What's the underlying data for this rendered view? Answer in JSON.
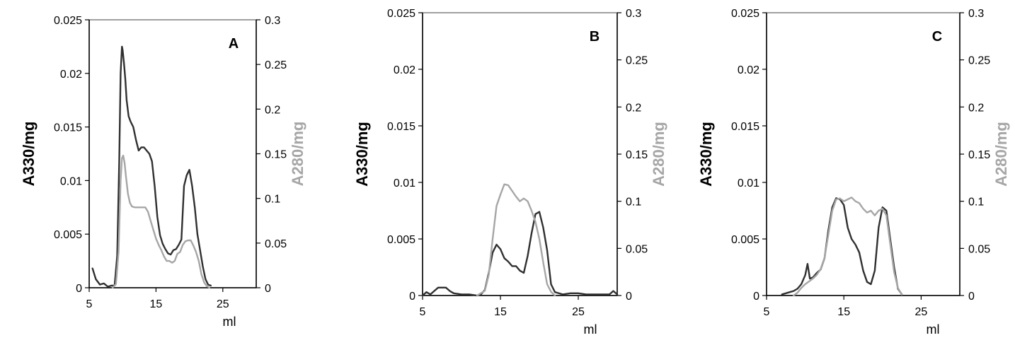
{
  "chart_data": [
    {
      "type": "line",
      "title": "A",
      "xlabel": "ml",
      "ylabel": "A330/mg",
      "y2label": "A280/mg",
      "xlim": [
        5,
        30
      ],
      "ylim": [
        0,
        0.025
      ],
      "y2lim": [
        0,
        0.3
      ],
      "xticks": [
        5,
        15,
        25
      ],
      "xtick_labels": [
        "5",
        "15",
        "25"
      ],
      "yticks": [
        0,
        0.005,
        0.01,
        0.015,
        0.02,
        0.025
      ],
      "ytick_labels": [
        "0",
        "0.005",
        "0.01",
        "0.015",
        "0.02",
        "0.025"
      ],
      "y2ticks": [
        0,
        0.05,
        0.1,
        0.15,
        0.2,
        0.25,
        0.3
      ],
      "y2tick_labels": [
        "0",
        "0.05",
        "0.1",
        "0.15",
        "0.2",
        "0.25",
        "0.3"
      ],
      "grid": false,
      "series": [
        {
          "axis": "left",
          "color": "#303030",
          "x": [
            5.5,
            6.0,
            6.6,
            7.2,
            7.8,
            8.3,
            8.8,
            9.2,
            9.5,
            9.7,
            9.9,
            10.0,
            10.2,
            10.4,
            10.6,
            10.9,
            11.2,
            11.6,
            12.0,
            12.4,
            12.8,
            13.2,
            13.6,
            14.0,
            14.4,
            14.8,
            15.2,
            15.6,
            16.0,
            16.4,
            16.8,
            17.2,
            17.6,
            18.0,
            18.4,
            18.8,
            19.2,
            19.6,
            20.0,
            20.4,
            20.8,
            21.2,
            21.6,
            22.0,
            22.4,
            22.8,
            23.2
          ],
          "values": [
            0.0018,
            0.0008,
            0.0003,
            0.0004,
            0.0001,
            0.0002,
            0.0002,
            0.003,
            0.012,
            0.02,
            0.0225,
            0.0222,
            0.021,
            0.0195,
            0.0175,
            0.016,
            0.0155,
            0.015,
            0.0138,
            0.0128,
            0.0131,
            0.0131,
            0.0128,
            0.0125,
            0.0118,
            0.0095,
            0.0066,
            0.0049,
            0.0041,
            0.0036,
            0.0032,
            0.0031,
            0.0035,
            0.0036,
            0.004,
            0.0045,
            0.0095,
            0.0105,
            0.011,
            0.0095,
            0.0075,
            0.005,
            0.0035,
            0.002,
            0.0008,
            0.0003,
            0.0002
          ]
        },
        {
          "axis": "right",
          "color": "#a6a6a6",
          "x": [
            8.5,
            9.0,
            9.4,
            9.7,
            9.9,
            10.1,
            10.3,
            10.5,
            10.8,
            11.1,
            11.4,
            11.8,
            12.2,
            12.6,
            13.0,
            13.4,
            13.8,
            14.2,
            14.6,
            15.0,
            15.4,
            15.8,
            16.2,
            16.6,
            17.0,
            17.4,
            17.8,
            18.2,
            18.6,
            19.0,
            19.4,
            19.8,
            20.2,
            20.6,
            21.0,
            21.4,
            21.8,
            22.2,
            22.6,
            23.0
          ],
          "values": [
            0.0,
            0.004,
            0.04,
            0.12,
            0.145,
            0.148,
            0.14,
            0.125,
            0.105,
            0.095,
            0.091,
            0.09,
            0.09,
            0.09,
            0.09,
            0.09,
            0.085,
            0.075,
            0.065,
            0.055,
            0.048,
            0.042,
            0.035,
            0.03,
            0.03,
            0.028,
            0.03,
            0.038,
            0.04,
            0.048,
            0.052,
            0.053,
            0.053,
            0.047,
            0.04,
            0.03,
            0.015,
            0.006,
            0.002,
            0.0
          ]
        }
      ]
    },
    {
      "type": "line",
      "title": "B",
      "xlabel": "ml",
      "ylabel": "A330/mg",
      "y2label": "A280/mg",
      "xlim": [
        5,
        30
      ],
      "ylim": [
        0,
        0.025
      ],
      "y2lim": [
        0,
        0.3
      ],
      "xticks": [
        5,
        15,
        25
      ],
      "xtick_labels": [
        "5",
        "15",
        "25"
      ],
      "yticks": [
        0,
        0.005,
        0.01,
        0.015,
        0.02,
        0.025
      ],
      "ytick_labels": [
        "0",
        "0.005",
        "0.01",
        "0.015",
        "0.02",
        "0.025"
      ],
      "y2ticks": [
        0,
        0.05,
        0.1,
        0.15,
        0.2,
        0.25,
        0.3
      ],
      "y2tick_labels": [
        "0",
        "0.05",
        "0.1",
        "0.15",
        "0.2",
        "0.25",
        "0.3"
      ],
      "grid": false,
      "series": [
        {
          "axis": "left",
          "color": "#303030",
          "x": [
            5.0,
            5.5,
            6.0,
            6.5,
            7.0,
            7.5,
            8.0,
            8.5,
            9.0,
            10.0,
            11.0,
            12.0,
            12.5,
            13.0,
            13.5,
            14.0,
            14.5,
            15.0,
            15.5,
            16.0,
            16.5,
            17.0,
            17.5,
            18.0,
            18.5,
            19.0,
            19.5,
            20.0,
            20.5,
            21.0,
            21.5,
            22.0,
            23.0,
            24.0,
            25.0,
            26.0,
            27.0,
            28.0,
            29.0,
            29.5,
            30.0
          ],
          "values": [
            0.0,
            0.0003,
            0.0001,
            0.0004,
            0.0007,
            0.0007,
            0.0007,
            0.0004,
            0.0002,
            0.0001,
            0.0001,
            0.0,
            0.0001,
            0.0005,
            0.002,
            0.0038,
            0.0045,
            0.0041,
            0.0033,
            0.003,
            0.0026,
            0.0026,
            0.0022,
            0.002,
            0.0035,
            0.0055,
            0.0072,
            0.0074,
            0.006,
            0.004,
            0.001,
            0.0003,
            0.0001,
            0.0002,
            0.0002,
            0.0001,
            0.0001,
            0.0001,
            0.0001,
            0.0004,
            0.0001
          ]
        },
        {
          "axis": "right",
          "color": "#a6a6a6",
          "x": [
            12.0,
            13.0,
            13.5,
            14.0,
            14.5,
            15.0,
            15.5,
            16.0,
            16.5,
            17.0,
            17.5,
            18.0,
            18.5,
            19.0,
            19.5,
            20.0,
            20.5,
            21.0,
            21.5,
            22.0
          ],
          "values": [
            0.0,
            0.005,
            0.022,
            0.06,
            0.095,
            0.107,
            0.118,
            0.117,
            0.111,
            0.105,
            0.1,
            0.103,
            0.1,
            0.09,
            0.078,
            0.06,
            0.035,
            0.012,
            0.004,
            0.0
          ]
        }
      ]
    },
    {
      "type": "line",
      "title": "C",
      "xlabel": "ml",
      "ylabel": "A330/mg",
      "y2label": "A280/mg",
      "xlim": [
        5,
        30
      ],
      "ylim": [
        0,
        0.025
      ],
      "y2lim": [
        0,
        0.3
      ],
      "xticks": [
        5,
        15,
        25
      ],
      "xtick_labels": [
        "5",
        "15",
        "25"
      ],
      "yticks": [
        0,
        0.005,
        0.01,
        0.015,
        0.02,
        0.025
      ],
      "ytick_labels": [
        "0",
        "0.005",
        "0.01",
        "0.015",
        "0.02",
        "0.025"
      ],
      "y2ticks": [
        0,
        0.05,
        0.1,
        0.15,
        0.2,
        0.25,
        0.3
      ],
      "y2tick_labels": [
        "0",
        "0.05",
        "0.1",
        "0.15",
        "0.2",
        "0.25",
        "0.3"
      ],
      "grid": false,
      "series": [
        {
          "axis": "left",
          "color": "#303030",
          "x": [
            7.0,
            7.5,
            8.0,
            8.5,
            9.0,
            9.5,
            10.0,
            10.3,
            10.6,
            11.0,
            11.5,
            12.0,
            12.5,
            13.0,
            13.5,
            14.0,
            14.5,
            15.0,
            15.5,
            16.0,
            16.5,
            17.0,
            17.5,
            18.0,
            18.5,
            19.0,
            19.5,
            20.0,
            20.5,
            21.0,
            21.5,
            22.0,
            22.5
          ],
          "values": [
            0.0001,
            0.0002,
            0.0003,
            0.0004,
            0.0006,
            0.001,
            0.0018,
            0.0028,
            0.0015,
            0.0016,
            0.002,
            0.0023,
            0.0033,
            0.0058,
            0.0078,
            0.0086,
            0.0085,
            0.008,
            0.006,
            0.005,
            0.0045,
            0.0038,
            0.0022,
            0.0012,
            0.001,
            0.0022,
            0.006,
            0.0078,
            0.0075,
            0.005,
            0.0025,
            0.0006,
            0.0001
          ]
        },
        {
          "axis": "right",
          "color": "#a6a6a6",
          "x": [
            8.5,
            9.0,
            9.5,
            10.0,
            10.5,
            11.0,
            11.5,
            12.0,
            12.5,
            13.0,
            13.5,
            14.0,
            14.5,
            15.0,
            15.5,
            16.0,
            16.5,
            17.0,
            17.5,
            18.0,
            18.5,
            19.0,
            19.5,
            20.0,
            20.5,
            21.0,
            21.5,
            22.0,
            22.5
          ],
          "values": [
            0.0,
            0.003,
            0.008,
            0.012,
            0.015,
            0.018,
            0.022,
            0.028,
            0.04,
            0.065,
            0.09,
            0.102,
            0.103,
            0.1,
            0.102,
            0.104,
            0.1,
            0.098,
            0.092,
            0.088,
            0.09,
            0.085,
            0.09,
            0.092,
            0.085,
            0.055,
            0.025,
            0.008,
            0.001
          ]
        }
      ]
    }
  ]
}
